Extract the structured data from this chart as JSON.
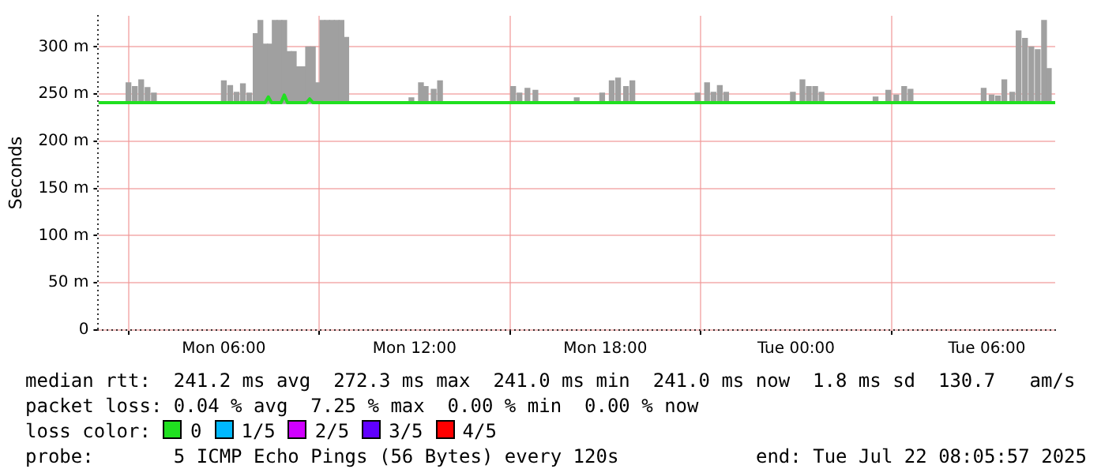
{
  "chart_data": {
    "type": "line",
    "ylabel": "Seconds",
    "xlim": [
      "2025-07-21T02:03",
      "2025-07-22T08:09"
    ],
    "xticks": [
      {
        "value": "2025-07-21T06:00",
        "label": "Mon 06:00"
      },
      {
        "value": "2025-07-21T12:00",
        "label": "Mon 12:00"
      },
      {
        "value": "2025-07-21T18:00",
        "label": "Mon 18:00"
      },
      {
        "value": "2025-07-22T00:00",
        "label": "Tue 00:00"
      },
      {
        "value": "2025-07-22T06:00",
        "label": "Tue 06:00"
      }
    ],
    "ylim": [
      0,
      333
    ],
    "yticks": [
      0,
      {
        "value": 50,
        "label": "50 m"
      },
      {
        "value": 100,
        "label": "100 m"
      },
      {
        "value": 150,
        "label": "150 m"
      },
      {
        "value": 200,
        "label": "200 m"
      },
      {
        "value": 250,
        "label": "250 m"
      },
      {
        "value": 300,
        "label": "300 m"
      }
    ],
    "grid": true,
    "legend": "bottom",
    "legend_title": "loss color:",
    "series": [
      {
        "type": "bar",
        "color": "#a0a0a0",
        "x": [
          "2025-07-21T03:00",
          "2025-07-21T03:12",
          "2025-07-21T03:24",
          "2025-07-21T03:36",
          "2025-07-21T03:48",
          "2025-07-21T06:00",
          "2025-07-21T06:12",
          "2025-07-21T06:24",
          "2025-07-21T06:36",
          "2025-07-21T06:48",
          "2025-07-21T07:00",
          "2025-07-21T07:09",
          "2025-07-21T07:18",
          "2025-07-21T07:27",
          "2025-07-21T07:36",
          "2025-07-21T07:45",
          "2025-07-21T07:54",
          "2025-07-21T08:03",
          "2025-07-21T08:12",
          "2025-07-21T08:21",
          "2025-07-21T08:30",
          "2025-07-21T08:39",
          "2025-07-21T08:48",
          "2025-07-21T08:57",
          "2025-07-21T09:06",
          "2025-07-21T09:15",
          "2025-07-21T09:24",
          "2025-07-21T09:33",
          "2025-07-21T09:42",
          "2025-07-21T09:51",
          "2025-07-21T11:54",
          "2025-07-21T12:12",
          "2025-07-21T12:21",
          "2025-07-21T12:36",
          "2025-07-21T12:48",
          "2025-07-21T15:06",
          "2025-07-21T15:18",
          "2025-07-21T15:33",
          "2025-07-21T15:48",
          "2025-07-21T17:06",
          "2025-07-21T17:54",
          "2025-07-21T18:12",
          "2025-07-21T18:24",
          "2025-07-21T18:39",
          "2025-07-21T18:51",
          "2025-07-21T20:54",
          "2025-07-21T21:12",
          "2025-07-21T21:24",
          "2025-07-21T21:36",
          "2025-07-21T21:48",
          "2025-07-21T23:54",
          "2025-07-22T00:12",
          "2025-07-22T00:24",
          "2025-07-22T00:36",
          "2025-07-22T00:48",
          "2025-07-22T02:30",
          "2025-07-22T02:54",
          "2025-07-22T03:09",
          "2025-07-22T03:24",
          "2025-07-22T03:36",
          "2025-07-22T05:54",
          "2025-07-22T06:09",
          "2025-07-22T06:21",
          "2025-07-22T06:33",
          "2025-07-22T06:48",
          "2025-07-22T07:00",
          "2025-07-22T07:12",
          "2025-07-22T07:24",
          "2025-07-22T07:36",
          "2025-07-22T07:48",
          "2025-07-22T07:57"
        ],
        "base": [
          240,
          240,
          240,
          240,
          240,
          240,
          240,
          240,
          240,
          240,
          240,
          240,
          240,
          240,
          240,
          240,
          240,
          240,
          240,
          240,
          240,
          240,
          240,
          240,
          240,
          240,
          240,
          240,
          240,
          240,
          240,
          240,
          240,
          240,
          240,
          240,
          240,
          240,
          240,
          240,
          240,
          240,
          240,
          240,
          240,
          240,
          240,
          240,
          240,
          240,
          240,
          240,
          240,
          240,
          240,
          240,
          240,
          240,
          240,
          240,
          240,
          240,
          240,
          240,
          240,
          240,
          240,
          240,
          240,
          240,
          240
        ],
        "values": [
          22,
          18,
          25,
          17,
          11,
          24,
          19,
          12,
          21,
          11,
          74,
          88,
          63,
          63,
          88,
          88,
          88,
          55,
          55,
          39,
          39,
          60,
          60,
          22,
          88,
          88,
          88,
          88,
          88,
          70,
          6,
          22,
          18,
          15,
          24,
          18,
          11,
          16,
          14,
          6,
          11,
          24,
          27,
          18,
          24,
          11,
          22,
          12,
          19,
          12,
          12,
          25,
          18,
          18,
          12,
          7,
          14,
          9,
          18,
          15,
          16,
          9,
          8,
          25,
          12,
          77,
          69,
          60,
          57,
          88,
          37
        ]
      },
      {
        "name": "0",
        "color": "#20e020",
        "x": [
          "2025-07-21T02:03",
          "2025-07-21T07:18",
          "2025-07-21T07:24",
          "2025-07-21T07:30",
          "2025-07-21T07:48",
          "2025-07-21T07:54",
          "2025-07-21T08:00",
          "2025-07-21T08:36",
          "2025-07-21T08:42",
          "2025-07-21T08:48",
          "2025-07-21T09:00",
          "2025-07-22T08:09"
        ],
        "values": [
          241,
          241,
          247,
          241,
          241,
          249,
          241,
          241,
          245,
          241,
          241,
          241
        ]
      },
      {
        "name": "1/5",
        "color": "#00b8ff"
      },
      {
        "name": "2/5",
        "color": "#d000ff"
      },
      {
        "name": "3/5",
        "color": "#6000ff"
      },
      {
        "name": "4/5",
        "color": "#ff0000"
      }
    ],
    "annotations": [
      "median rtt:  241.2 ms avg  272.3 ms max  241.0 ms min  241.0 ms now  1.8 ms sd  130.7   am/s",
      "packet loss: 0.04 % avg  7.25 % max  0.00 % min  0.00 % now",
      "probe:       5 ICMP Echo Pings (56 Bytes) every 120s",
      "end: Tue Jul 22 08:05:57 2025"
    ]
  }
}
